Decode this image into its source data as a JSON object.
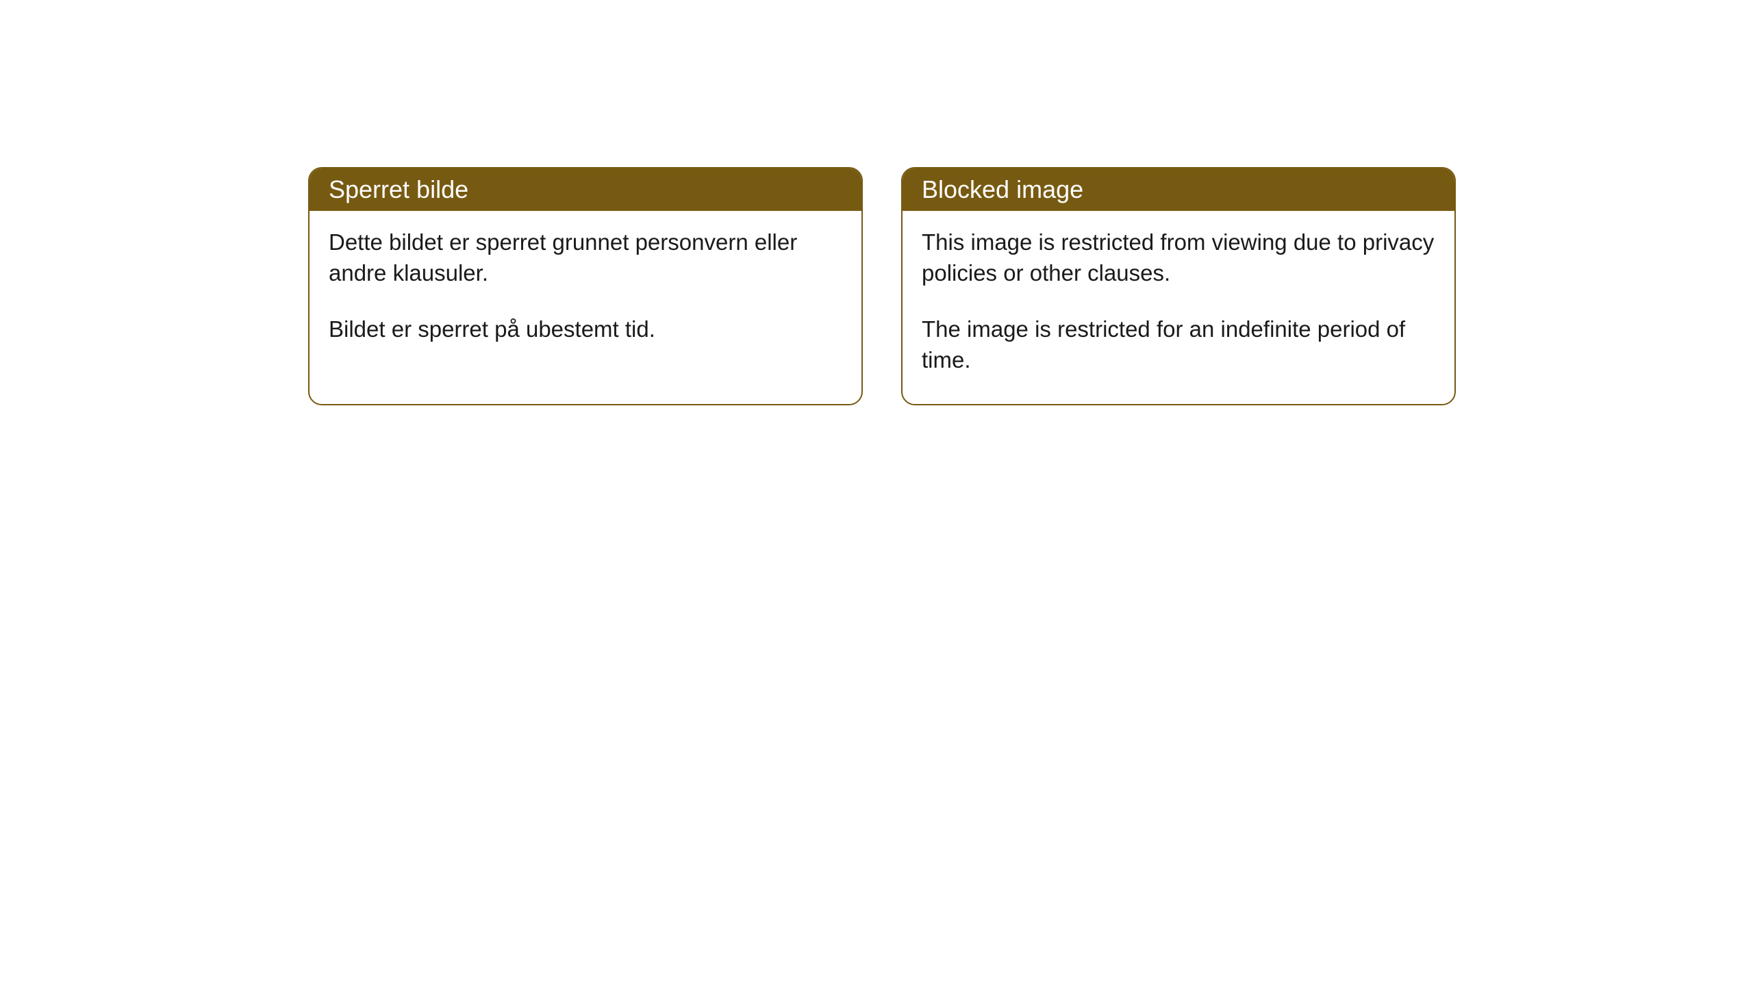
{
  "cards": [
    {
      "title": "Sperret bilde",
      "paragraph1": "Dette bildet er sperret grunnet personvern eller andre klausuler.",
      "paragraph2": "Bildet er sperret på ubestemt tid."
    },
    {
      "title": "Blocked image",
      "paragraph1": "This image is restricted from viewing due to privacy policies or other clauses.",
      "paragraph2": "The image is restricted for an indefinite period of time."
    }
  ],
  "style": {
    "header_bg_color": "#775a11",
    "header_text_color": "#ffffff",
    "border_color": "#775a11",
    "body_text_color": "#1a1a1a",
    "page_bg_color": "#ffffff",
    "border_radius": 20,
    "header_fontsize": 36,
    "body_fontsize": 33
  }
}
